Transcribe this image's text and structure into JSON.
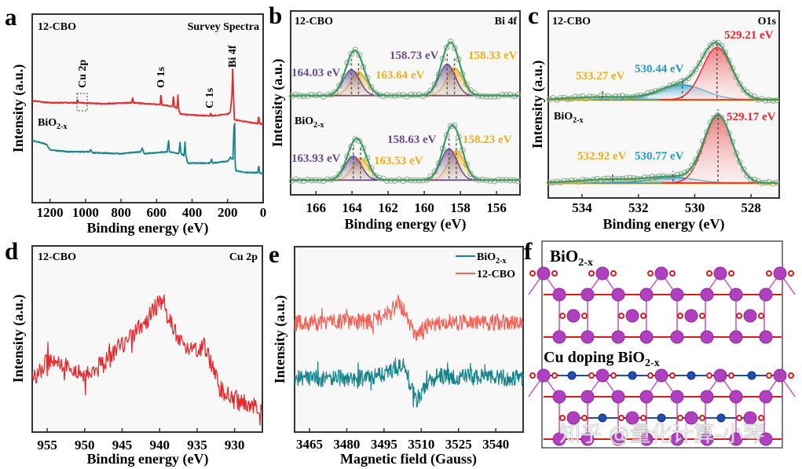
{
  "colors": {
    "red": "#e8282d",
    "teal": "#17838a",
    "salmon": "#f26358",
    "purple": "#6b4a8e",
    "orange": "#eeae1e",
    "green": "#3b9a5c",
    "blue": "#2a96c4",
    "bi_atom": "#b040c0",
    "o_atom": "#e01818",
    "cu_atom": "#1f4fb0"
  },
  "panel_labels": {
    "a": "a",
    "b": "b",
    "c": "c",
    "d": "d",
    "e": "e",
    "f": "f"
  },
  "chart_data": [
    {
      "id": "a",
      "type": "line",
      "title": "Survey Spectra",
      "sample_label": "12-CBO",
      "xlabel": "Binding energy (eV)",
      "ylabel": "Intensity (a.u.)",
      "xlim": [
        1300,
        0
      ],
      "ylim": [
        0,
        100
      ],
      "xticks": [
        "1200",
        "1000",
        "800",
        "600",
        "400",
        "200",
        "0"
      ],
      "annotations": [
        "Cu 2p",
        "O 1s",
        "C 1s",
        "Bi 4f"
      ],
      "series": [
        {
          "name": "12-CBO",
          "color": "#e8282d",
          "points": [
            [
              1300,
              54
            ],
            [
              1200,
              53
            ],
            [
              1050,
              53
            ],
            [
              1045,
              55
            ],
            [
              1040,
              53
            ],
            [
              900,
              52.5
            ],
            [
              740,
              53
            ],
            [
              735,
              56
            ],
            [
              730,
              53
            ],
            [
              580,
              52
            ],
            [
              575,
              58
            ],
            [
              570,
              52
            ],
            [
              510,
              51
            ],
            [
              505,
              57
            ],
            [
              500,
              51
            ],
            [
              485,
              50
            ],
            [
              480,
              57
            ],
            [
              475,
              49
            ],
            [
              465,
              47
            ],
            [
              400,
              46.5
            ],
            [
              300,
              46
            ],
            [
              295,
              47.5
            ],
            [
              290,
              46
            ],
            [
              200,
              47
            ],
            [
              185,
              48
            ],
            [
              175,
              57
            ],
            [
              172,
              71
            ],
            [
              168,
              60
            ],
            [
              162,
              44
            ],
            [
              100,
              43
            ],
            [
              30,
              42
            ],
            [
              25,
              46
            ],
            [
              20,
              42
            ],
            [
              0,
              41.5
            ]
          ]
        },
        {
          "name": "BiO2-x",
          "label": {
            "base": "BiO",
            "sub": "2-x"
          },
          "color": "#17838a",
          "points": [
            [
              1300,
              33
            ],
            [
              1260,
              32
            ],
            [
              1220,
              31
            ],
            [
              1200,
              28
            ],
            [
              1100,
              27
            ],
            [
              980,
              27
            ],
            [
              970,
              28
            ],
            [
              960,
              26.5
            ],
            [
              800,
              26
            ],
            [
              690,
              27
            ],
            [
              680,
              29
            ],
            [
              670,
              26
            ],
            [
              540,
              27
            ],
            [
              532,
              33
            ],
            [
              528,
              27
            ],
            [
              475,
              26
            ],
            [
              468,
              32
            ],
            [
              462,
              26
            ],
            [
              445,
              25
            ],
            [
              440,
              32
            ],
            [
              435,
              25
            ],
            [
              425,
              21
            ],
            [
              300,
              21
            ],
            [
              290,
              23
            ],
            [
              285,
              21
            ],
            [
              200,
              22
            ],
            [
              185,
              24
            ],
            [
              170,
              23
            ],
            [
              165,
              40
            ],
            [
              160,
              42
            ],
            [
              158,
              23
            ],
            [
              155,
              17
            ],
            [
              100,
              16
            ],
            [
              30,
              16
            ],
            [
              25,
              20
            ],
            [
              20,
              16
            ],
            [
              0,
              15
            ]
          ]
        }
      ]
    },
    {
      "id": "b",
      "type": "line",
      "title": "Bi 4f",
      "xlabel": "Binding energy (eV)",
      "ylabel": "Intensity (a.u.)",
      "xlim": [
        167.4,
        154.7
      ],
      "ylim": [
        0,
        100
      ],
      "xticks": [
        "166",
        "164",
        "162",
        "160",
        "158",
        "156"
      ],
      "series": [
        {
          "name": "12-CBO",
          "baseline": 54,
          "sigma": 0.45,
          "peaks": [
            {
              "center": 164.03,
              "height": 14,
              "color": "#6b4a8e",
              "label": "164.03 eV"
            },
            {
              "center": 163.64,
              "height": 13,
              "color": "#eeae1e",
              "label": "163.64 eV"
            },
            {
              "center": 158.73,
              "height": 17,
              "color": "#6b4a8e",
              "label": "158.73 eV"
            },
            {
              "center": 158.33,
              "height": 15,
              "color": "#eeae1e",
              "label": "158.33 eV"
            }
          ]
        },
        {
          "name": "BiO2-x",
          "label": {
            "base": "BiO",
            "sub": "2-x"
          },
          "baseline": 8,
          "sigma": 0.45,
          "peaks": [
            {
              "center": 163.93,
              "height": 13,
              "color": "#6b4a8e",
              "label": "163.93 eV"
            },
            {
              "center": 163.53,
              "height": 12,
              "color": "#eeae1e",
              "label": "163.53 eV"
            },
            {
              "center": 158.63,
              "height": 17,
              "color": "#6b4a8e",
              "label": "158.63 eV"
            },
            {
              "center": 158.23,
              "height": 16,
              "color": "#eeae1e",
              "label": "158.23 eV"
            }
          ]
        }
      ]
    },
    {
      "id": "c",
      "type": "line",
      "title": "O1s",
      "xlabel": "Binding energy (eV)",
      "ylabel": "Intensity (a.u.)",
      "xlim": [
        535.2,
        527
      ],
      "ylim": [
        0,
        100
      ],
      "xticks": [
        "534",
        "532",
        "530",
        "528"
      ],
      "series": [
        {
          "name": "12-CBO",
          "baseline": 52.5,
          "peaks": [
            {
              "center": 529.21,
              "height": 28,
              "sigma": 0.52,
              "color": "#e8282d",
              "label": "529.21 eV"
            },
            {
              "center": 530.44,
              "height": 8,
              "sigma": 0.8,
              "color": "#2a96c4",
              "label": "530.44 eV"
            },
            {
              "center": 533.27,
              "height": 1.5,
              "sigma": 1.2,
              "color": "#eeae1e",
              "label": "533.27 eV"
            }
          ]
        },
        {
          "name": "BiO2-x",
          "label": {
            "base": "BiO",
            "sub": "2-x"
          },
          "baseline": 8,
          "peaks": [
            {
              "center": 529.17,
              "height": 36,
              "sigma": 0.5,
              "color": "#e8282d",
              "label": "529.17 eV"
            },
            {
              "center": 530.77,
              "height": 3,
              "sigma": 0.8,
              "color": "#2a96c4",
              "label": "530.77 eV"
            },
            {
              "center": 532.92,
              "height": 2,
              "sigma": 1.2,
              "color": "#eeae1e",
              "label": "532.92 eV"
            }
          ]
        }
      ]
    },
    {
      "id": "d",
      "type": "line",
      "title": "Cu 2p",
      "sample_label": "12-CBO",
      "xlabel": "Binding energy (eV)",
      "ylabel": "Intensity (a.u.)",
      "xlim": [
        957,
        926.3
      ],
      "ylim": [
        0,
        100
      ],
      "xticks": [
        "955",
        "950",
        "945",
        "940",
        "935",
        "930"
      ],
      "series": [
        {
          "name": "12-CBO",
          "color": "#e8282d",
          "points": [
            [
              957,
              28
            ],
            [
              955,
              38
            ],
            [
              952,
              34
            ],
            [
              950,
              30
            ],
            [
              947,
              38
            ],
            [
              945,
              46
            ],
            [
              942,
              59
            ],
            [
              940,
              70
            ],
            [
              938,
              55
            ],
            [
              937,
              46
            ],
            [
              935,
              44
            ],
            [
              934,
              46
            ],
            [
              932,
              23
            ],
            [
              930,
              17
            ],
            [
              927,
              15
            ],
            [
              926.3,
              14
            ]
          ]
        }
      ]
    },
    {
      "id": "e",
      "type": "line",
      "xlabel": "Magnetic field (Gauss)",
      "ylabel": "Intensity (a.u.)",
      "xlim": [
        3459,
        3551
      ],
      "ylim": [
        0,
        100
      ],
      "xticks": [
        "3465",
        "3480",
        "3495",
        "3510",
        "3525",
        "3540"
      ],
      "legend": "top-right",
      "series": [
        {
          "name": "BiO2-x",
          "label": {
            "base": "BiO",
            "sub": "2-x"
          },
          "color": "#17838a",
          "points": [
            [
              3459,
              29
            ],
            [
              3490,
              29
            ],
            [
              3497,
              33
            ],
            [
              3503,
              36
            ],
            [
              3506,
              24
            ],
            [
              3508,
              17
            ],
            [
              3511,
              23
            ],
            [
              3516,
              30
            ],
            [
              3551,
              29
            ]
          ]
        },
        {
          "name": "12-CBO",
          "label": {
            "base": "12-CBO",
            "sub": ""
          },
          "color": "#f26358",
          "points": [
            [
              3459,
              59
            ],
            [
              3490,
              60
            ],
            [
              3497,
              64
            ],
            [
              3501,
              70
            ],
            [
              3504,
              63
            ],
            [
              3507,
              53
            ],
            [
              3510,
              55
            ],
            [
              3515,
              59
            ],
            [
              3551,
              59
            ]
          ]
        }
      ]
    }
  ],
  "panel_f": {
    "title1": {
      "base": "BiO",
      "sub": "2-x"
    },
    "title2": {
      "base": "Cu doping BiO",
      "sub": "2-x"
    },
    "watermark": "知乎 @量化计算-小琴"
  }
}
